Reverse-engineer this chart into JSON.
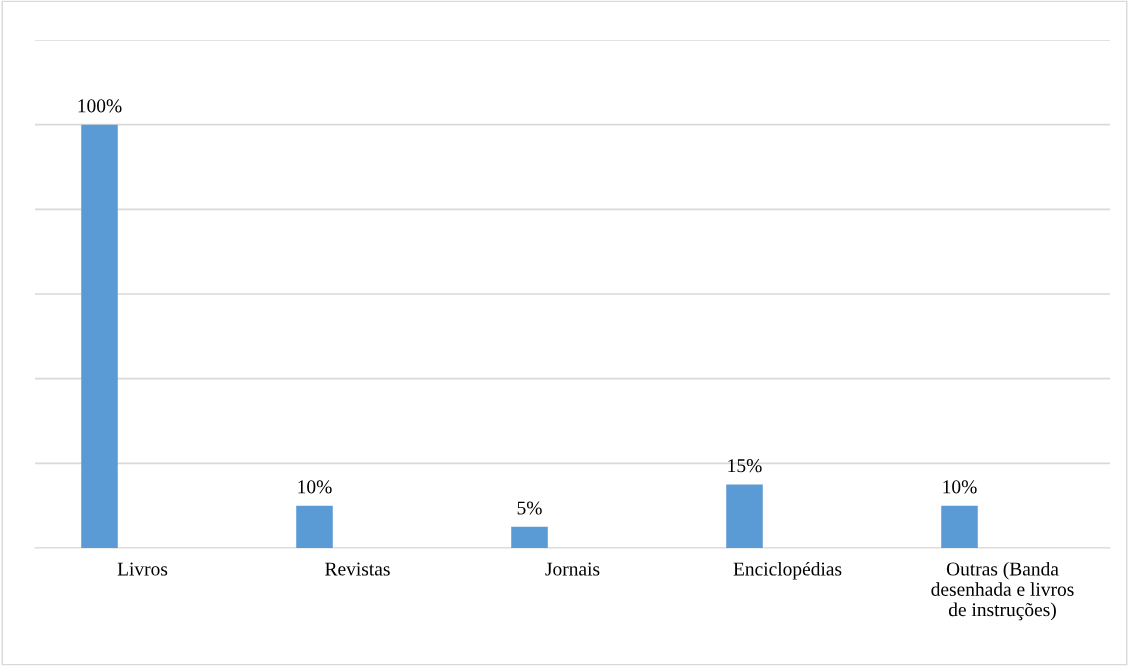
{
  "chart_data": {
    "type": "bar",
    "categories": [
      "Livros",
      "Revistas",
      "Jornais",
      "Enciclopédias",
      "Outras (Banda\ndesenhada e livros\nde instruções)"
    ],
    "values": [
      100,
      10,
      5,
      15,
      10
    ],
    "value_labels": [
      "100%",
      "10%",
      "5%",
      "15%",
      "10%"
    ],
    "color": "#5b9bd5",
    "ylim": [
      0,
      120
    ],
    "yticks": [
      {
        "value": 0,
        "label": null
      },
      {
        "value": 20,
        "label": null
      },
      {
        "value": 40,
        "label": null
      },
      {
        "value": 60,
        "label": null
      },
      {
        "value": 80,
        "label": null
      },
      {
        "value": 100,
        "label": null
      },
      {
        "value": 120,
        "label": null
      }
    ],
    "grid": "y",
    "tick_labels": "x"
  }
}
